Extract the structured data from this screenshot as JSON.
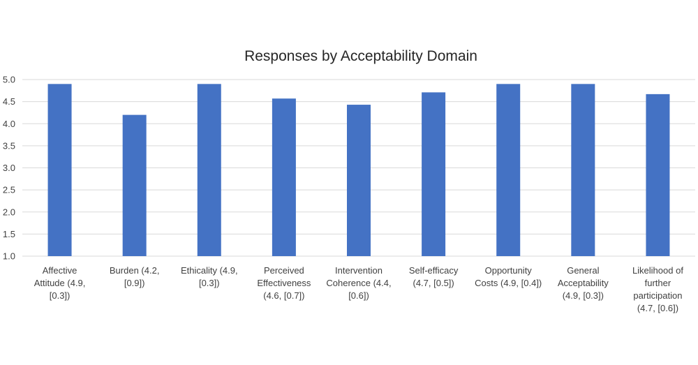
{
  "chart_data": {
    "type": "bar",
    "title": "Responses by Acceptability Domain",
    "xlabel": "",
    "ylabel": "",
    "ylim": [
      1.0,
      5.0
    ],
    "y_ticks": [
      "1.0",
      "1.5",
      "2.0",
      "2.5",
      "3.0",
      "3.5",
      "4.0",
      "4.5",
      "5.0"
    ],
    "grid": true,
    "bar_color": "#4472C4",
    "categories": [
      "Affective Attitude (4.9, [0.3])",
      "Burden (4.2, [0.9])",
      "Ethicality (4.9, [0.3])",
      "Perceived Effectiveness (4.6, [0.7])",
      "Intervention Coherence (4.4, [0.6])",
      "Self-efficacy (4.7, [0.5])",
      "Opportunity Costs (4.9, [0.4])",
      "General Acceptability (4.9, [0.3])",
      "Likelihood of further participation (4.7, [0.6])"
    ],
    "category_lines": [
      [
        "Affective",
        "Attitude (4.9,",
        "[0.3])"
      ],
      [
        "Burden (4.2,",
        "[0.9])"
      ],
      [
        "Ethicality (4.9,",
        "[0.3])"
      ],
      [
        "Perceived",
        "Effectiveness",
        "(4.6, [0.7])"
      ],
      [
        "Intervention",
        "Coherence (4.4,",
        "[0.6])"
      ],
      [
        "Self-efficacy",
        "(4.7, [0.5])"
      ],
      [
        "Opportunity",
        "Costs (4.9, [0.4])"
      ],
      [
        "General",
        "Acceptability",
        "(4.9, [0.3])"
      ],
      [
        "Likelihood of",
        "further",
        "participation",
        "(4.7, [0.6])"
      ]
    ],
    "values": [
      4.9,
      4.2,
      4.9,
      4.57,
      4.43,
      4.71,
      4.9,
      4.9,
      4.67
    ]
  }
}
